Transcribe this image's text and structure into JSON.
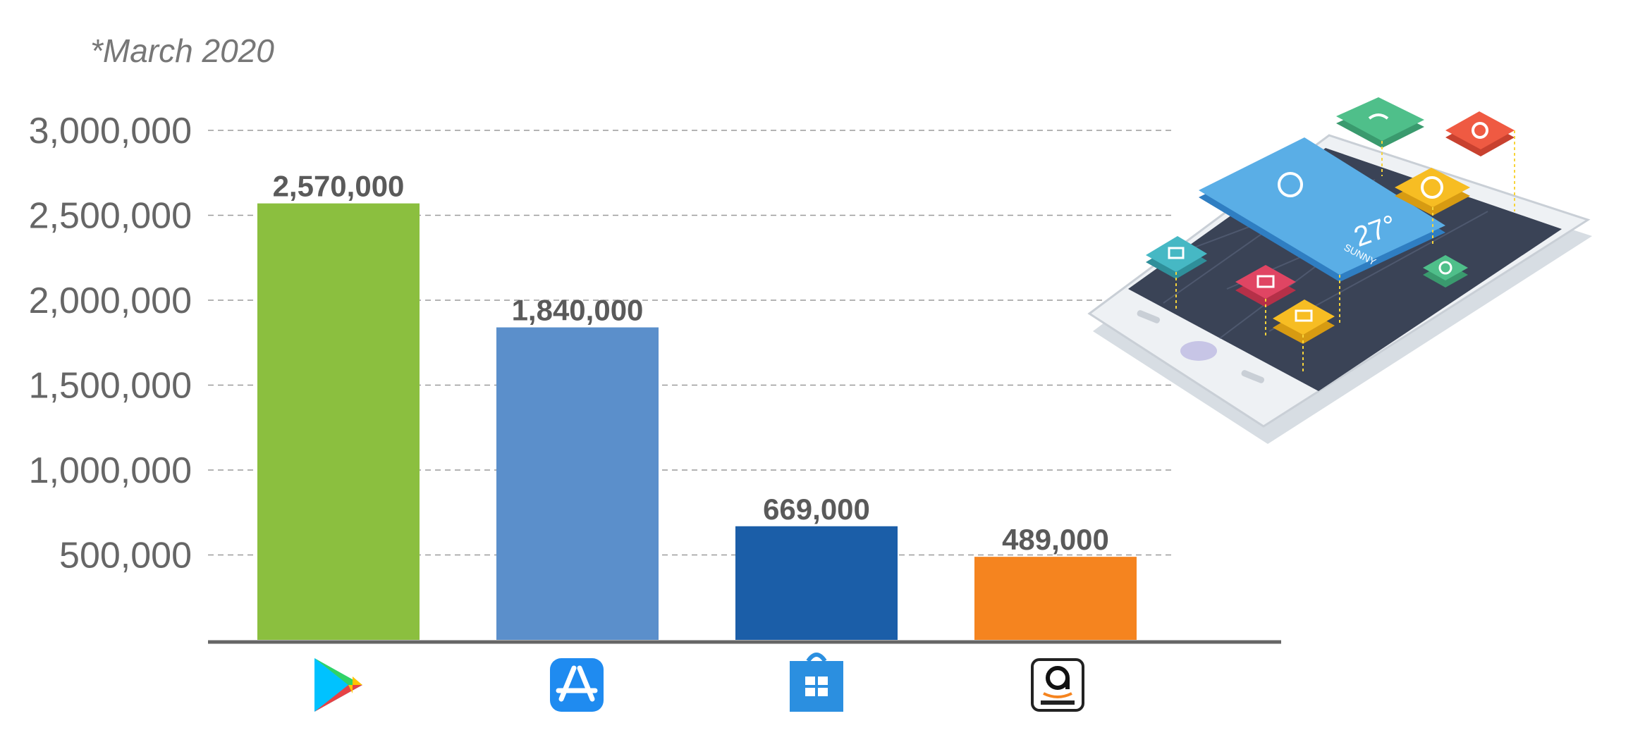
{
  "note": "*March 2020",
  "chart_data": {
    "type": "bar",
    "title": "",
    "xlabel": "",
    "ylabel": "",
    "categories": [
      "Google Play",
      "Apple App Store",
      "Windows Store",
      "Amazon Appstore"
    ],
    "values": [
      2570000,
      1840000,
      669000,
      489000
    ],
    "value_labels": [
      "2,570,000",
      "1,840,000",
      "669,000",
      "489,000"
    ],
    "colors": [
      "#8bbf3f",
      "#5b8fcb",
      "#1b5ea8",
      "#f5841f"
    ],
    "ylim": [
      0,
      3000000
    ],
    "yticks": [
      500000,
      1000000,
      1500000,
      2000000,
      2500000,
      3000000
    ],
    "ytick_labels": [
      "500,000",
      "1,000,000",
      "1,500,000",
      "2,000,000",
      "2,500,000",
      "3,000,000"
    ],
    "grid": true,
    "legend": "icons below bars",
    "category_icons": [
      "google-play-icon",
      "app-store-icon",
      "windows-store-icon",
      "amazon-appstore-icon"
    ]
  },
  "illustration": {
    "weather_temp": "27°",
    "weather_condition": "SUNNY"
  }
}
